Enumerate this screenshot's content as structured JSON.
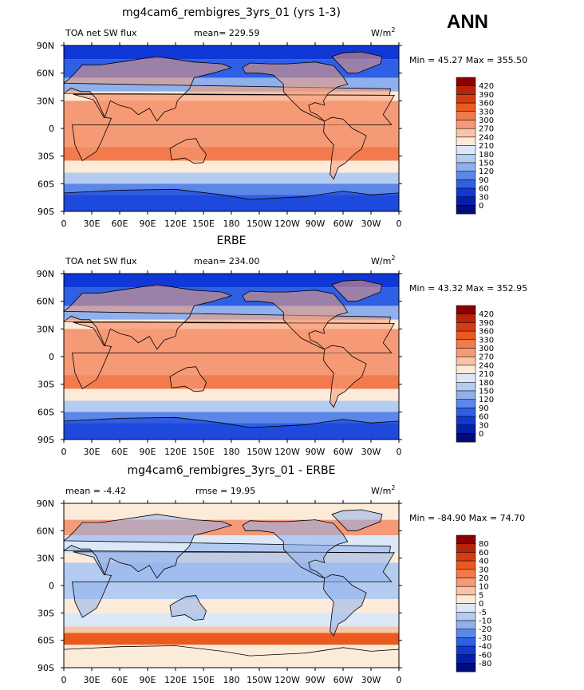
{
  "season_label": "ANN",
  "chart_data": [
    {
      "type": "heatmap",
      "title": "mg4cam6_rembigres_3yrs_01 (yrs 1-3)",
      "variable": "TOA net SW flux",
      "stat_text": "mean= 229.59",
      "units": "W/m",
      "units_sup": "2",
      "minmax": "Min =  45.27 Max = 355.50",
      "min": 45.27,
      "max": 355.5,
      "mean": 229.59,
      "levels": [
        "420",
        "390",
        "360",
        "330",
        "300",
        "270",
        "240",
        "210",
        "180",
        "150",
        "120",
        "90",
        "60",
        "30",
        "0"
      ],
      "xticks": [
        "0",
        "30E",
        "60E",
        "90E",
        "120E",
        "150E",
        "180",
        "150W",
        "120W",
        "90W",
        "60W",
        "30W",
        "0"
      ],
      "yticks": [
        "90N",
        "60N",
        "30N",
        "0",
        "30S",
        "60S",
        "90S"
      ],
      "xlim": [
        0,
        360
      ],
      "ylim": [
        -90,
        90
      ]
    },
    {
      "type": "heatmap",
      "title": "ERBE",
      "variable": "TOA net SW flux",
      "stat_text": "mean= 234.00",
      "units": "W/m",
      "units_sup": "2",
      "minmax": "Min =  43.32 Max = 352.95",
      "min": 43.32,
      "max": 352.95,
      "mean": 234.0,
      "levels": [
        "420",
        "390",
        "360",
        "330",
        "300",
        "270",
        "240",
        "210",
        "180",
        "150",
        "120",
        "90",
        "60",
        "30",
        "0"
      ],
      "xticks": [
        "0",
        "30E",
        "60E",
        "90E",
        "120E",
        "150E",
        "180",
        "150W",
        "120W",
        "90W",
        "60W",
        "30W",
        "0"
      ],
      "yticks": [
        "90N",
        "60N",
        "30N",
        "0",
        "30S",
        "60S",
        "90S"
      ],
      "xlim": [
        0,
        360
      ],
      "ylim": [
        -90,
        90
      ]
    },
    {
      "type": "heatmap",
      "title": "mg4cam6_rembigres_3yrs_01 - ERBE",
      "variable": "mean =   -4.42",
      "stat_text": "rmse =   19.95",
      "units": "W/m",
      "units_sup": "2",
      "minmax": "Min = -84.90 Max =  74.70",
      "min": -84.9,
      "max": 74.7,
      "mean": -4.42,
      "rmse": 19.95,
      "levels": [
        "80",
        "60",
        "40",
        "30",
        "20",
        "10",
        "5",
        "0",
        "-5",
        "-10",
        "-20",
        "-30",
        "-40",
        "-60",
        "-80"
      ],
      "xticks": [
        "0",
        "30E",
        "60E",
        "90E",
        "120E",
        "150E",
        "180",
        "150W",
        "120W",
        "90W",
        "60W",
        "30W",
        "0"
      ],
      "yticks": [
        "90N",
        "60N",
        "30N",
        "0",
        "30S",
        "60S",
        "90S"
      ],
      "xlim": [
        0,
        360
      ],
      "ylim": [
        -90,
        90
      ]
    }
  ],
  "colors": {
    "palette": [
      "#8b0000",
      "#b8230a",
      "#d43d12",
      "#ea5a1e",
      "#f27a4c",
      "#f59a76",
      "#f9c4a6",
      "#fdebda",
      "#dce8f8",
      "#b4ccf0",
      "#8fb0ec",
      "#5c86e8",
      "#2e5fe4",
      "#1038d6",
      "#071ea8",
      "#000c78"
    ]
  }
}
